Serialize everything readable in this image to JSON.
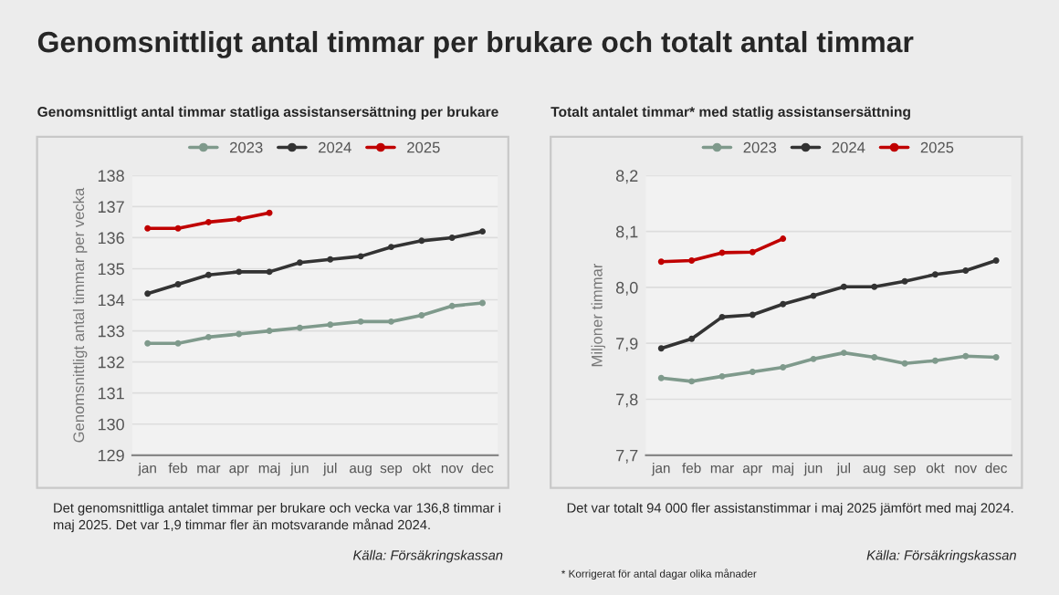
{
  "chart_data": [
    {
      "type": "line",
      "title": "Genomsnittligt antal timmar per brukare och totalt antal timmar",
      "subtitle": "Genomsnittligt antal timmar statliga assistansersättning per brukare",
      "ylabel": "Genomsnittligt antal timmar per vecka",
      "categories": [
        "jan",
        "feb",
        "mar",
        "apr",
        "maj",
        "jun",
        "jul",
        "aug",
        "sep",
        "okt",
        "nov",
        "dec"
      ],
      "series": [
        {
          "name": "2023",
          "color": "#7f9a8c",
          "values": [
            132.6,
            132.6,
            132.8,
            132.9,
            133.0,
            133.1,
            133.2,
            133.3,
            133.3,
            133.5,
            133.8,
            133.9
          ]
        },
        {
          "name": "2024",
          "color": "#333333",
          "values": [
            134.2,
            134.5,
            134.8,
            134.9,
            134.9,
            135.2,
            135.3,
            135.4,
            135.7,
            135.9,
            136.0,
            136.2
          ]
        },
        {
          "name": "2025",
          "color": "#c00000",
          "values": [
            136.3,
            136.3,
            136.5,
            136.6,
            136.8,
            null,
            null,
            null,
            null,
            null,
            null,
            null
          ]
        }
      ],
      "ylim": [
        129,
        138
      ],
      "yticks": [
        129,
        130,
        131,
        132,
        133,
        134,
        135,
        136,
        137,
        138
      ],
      "grid": "y",
      "legend": "top",
      "marker": "circle",
      "line_style": "solid",
      "annotations": [
        "Det genomsnittliga antalet timmar per brukare och vecka var 136,8 timmar i maj 2025. Det var 1,9 timmar fler än motsvarande månad 2024.",
        "Källa: Försäkringskassan"
      ]
    },
    {
      "type": "line",
      "subtitle": "Totalt antalet timmar* med statlig assistansersättning",
      "ylabel": "Miljoner timmar",
      "categories": [
        "jan",
        "feb",
        "mar",
        "apr",
        "maj",
        "jun",
        "jul",
        "aug",
        "sep",
        "okt",
        "nov",
        "dec"
      ],
      "series": [
        {
          "name": "2023",
          "color": "#7f9a8c",
          "values": [
            7.838,
            7.832,
            7.841,
            7.849,
            7.857,
            7.872,
            7.883,
            7.875,
            7.864,
            7.869,
            7.877,
            7.875
          ]
        },
        {
          "name": "2024",
          "color": "#333333",
          "values": [
            7.891,
            7.908,
            7.947,
            7.951,
            7.97,
            7.985,
            8.001,
            8.001,
            8.011,
            8.023,
            8.03,
            8.048
          ]
        },
        {
          "name": "2025",
          "color": "#c00000",
          "values": [
            8.046,
            8.048,
            8.062,
            8.063,
            8.087,
            null,
            null,
            null,
            null,
            null,
            null,
            null
          ]
        }
      ],
      "ylim": [
        7.7,
        8.2
      ],
      "yticks": [
        {
          "value": 7.7,
          "label": "7,7"
        },
        {
          "value": 7.8,
          "label": "7,8"
        },
        {
          "value": 7.9,
          "label": "7,9"
        },
        {
          "value": 8.0,
          "label": "8,0"
        },
        {
          "value": 8.1,
          "label": "8,1"
        },
        {
          "value": 8.2,
          "label": "8,2"
        }
      ],
      "grid": "y",
      "legend": "top",
      "marker": "circle",
      "line_style": "solid",
      "annotations": [
        "Det var totalt 94 000 fler assistanstimmar i maj 2025 jämfört med maj 2024.",
        "Källa: Försäkringskassan",
        "* Korrigerat för antal dagar olika månader"
      ]
    }
  ]
}
